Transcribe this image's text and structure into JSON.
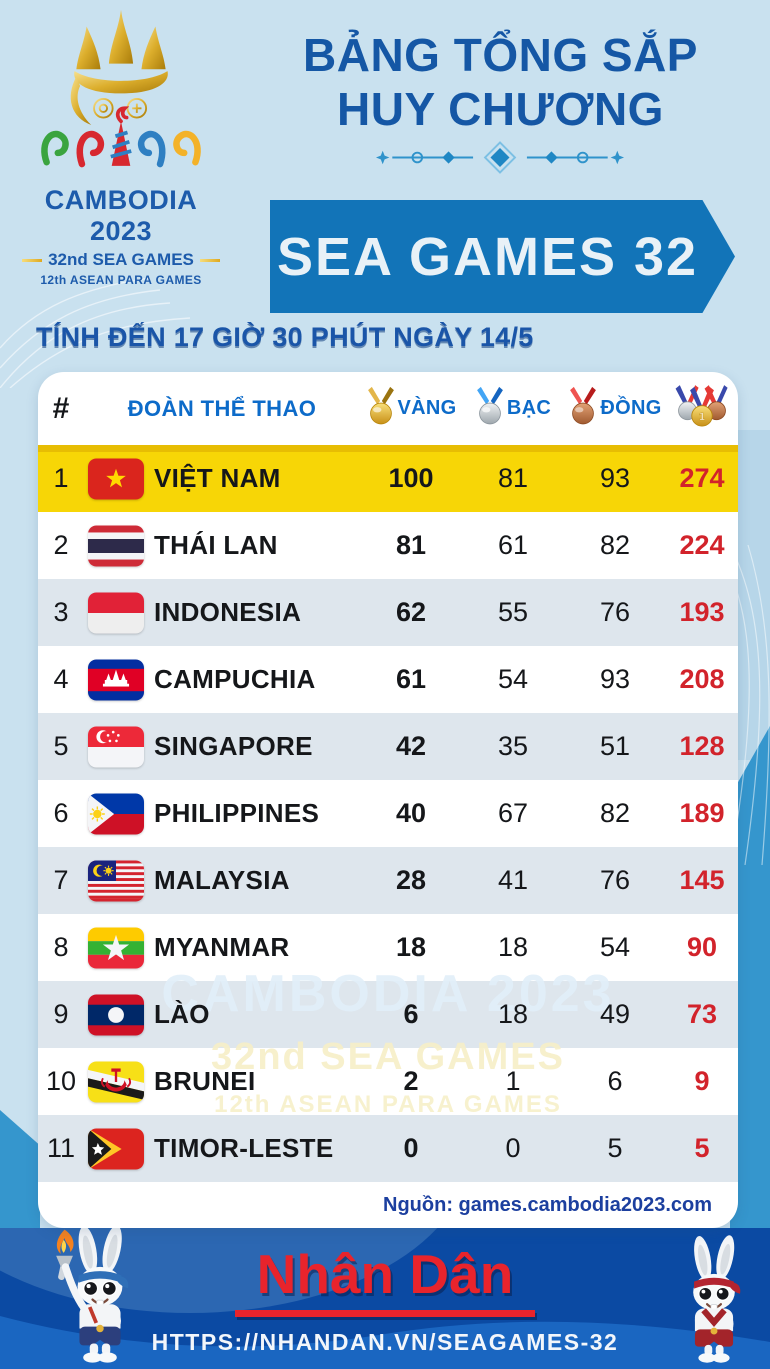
{
  "header": {
    "title_line1": "BẢNG TỔNG SẮP",
    "title_line2": "HUY CHƯƠNG",
    "banner": "SEA GAMES 32",
    "subtitle": "TÍNH ĐẾN 17 GIỜ 30 PHÚT NGÀY 14/5"
  },
  "logo": {
    "country_year": "CAMBODIA 2023",
    "games": "32nd SEA GAMES",
    "para_games": "12th ASEAN PARA GAMES"
  },
  "table": {
    "col_rank": "#",
    "col_team": "ĐOÀN THỂ THAO",
    "col_gold": "VÀNG",
    "col_silver": "BẠC",
    "col_bronze": "ĐỒNG",
    "rows": [
      {
        "rank": "1",
        "country": "VIỆT NAM",
        "gold": "100",
        "silver": "81",
        "bronze": "93",
        "total": "274",
        "flag": "vn",
        "flag_icon": "flag-vietnam-icon",
        "highlight": true
      },
      {
        "rank": "2",
        "country": "THÁI LAN",
        "gold": "81",
        "silver": "61",
        "bronze": "82",
        "total": "224",
        "flag": "th",
        "flag_icon": "flag-thailand-icon"
      },
      {
        "rank": "3",
        "country": "INDONESIA",
        "gold": "62",
        "silver": "55",
        "bronze": "76",
        "total": "193",
        "flag": "id",
        "flag_icon": "flag-indonesia-icon"
      },
      {
        "rank": "4",
        "country": "CAMPUCHIA",
        "gold": "61",
        "silver": "54",
        "bronze": "93",
        "total": "208",
        "flag": "kh",
        "flag_icon": "flag-cambodia-icon"
      },
      {
        "rank": "5",
        "country": "SINGAPORE",
        "gold": "42",
        "silver": "35",
        "bronze": "51",
        "total": "128",
        "flag": "sg",
        "flag_icon": "flag-singapore-icon"
      },
      {
        "rank": "6",
        "country": "PHILIPPINES",
        "gold": "40",
        "silver": "67",
        "bronze": "82",
        "total": "189",
        "flag": "ph",
        "flag_icon": "flag-philippines-icon"
      },
      {
        "rank": "7",
        "country": "MALAYSIA",
        "gold": "28",
        "silver": "41",
        "bronze": "76",
        "total": "145",
        "flag": "my",
        "flag_icon": "flag-malaysia-icon"
      },
      {
        "rank": "8",
        "country": "MYANMAR",
        "gold": "18",
        "silver": "18",
        "bronze": "54",
        "total": "90",
        "flag": "mm",
        "flag_icon": "flag-myanmar-icon"
      },
      {
        "rank": "9",
        "country": "LÀO",
        "gold": "6",
        "silver": "18",
        "bronze": "49",
        "total": "73",
        "flag": "la",
        "flag_icon": "flag-laos-icon"
      },
      {
        "rank": "10",
        "country": "BRUNEI",
        "gold": "2",
        "silver": "1",
        "bronze": "6",
        "total": "9",
        "flag": "bn",
        "flag_icon": "flag-brunei-icon"
      },
      {
        "rank": "11",
        "country": "TIMOR-LESTE",
        "gold": "0",
        "silver": "0",
        "bronze": "5",
        "total": "5",
        "flag": "tl",
        "flag_icon": "flag-timor-leste-icon"
      }
    ],
    "source": "Nguồn: games.cambodia2023.com"
  },
  "watermark": {
    "line1": "CAMBODIA 2023",
    "line2": "32nd SEA GAMES",
    "line3": "12th ASEAN PARA GAMES"
  },
  "footer": {
    "brand": "Nhân Dân",
    "url": "HTTPS://NHANDAN.VN/SEAGAMES-32"
  },
  "colors": {
    "background": "#c9e1ef",
    "title_blue": "#1557a5",
    "banner_blue": "#1274b8",
    "header_label_blue": "#0d6bc9",
    "highlight_yellow": "#f7d606",
    "alt_row": "#dee6ed",
    "total_red": "#d2232b",
    "footer_blue": "#0b4aa3",
    "footer_wave_blue": "#1a66c1",
    "brand_red": "#e8242c"
  },
  "chart_data": {
    "type": "table",
    "title": "BẢNG TỔNG SẮP HUY CHƯƠNG — SEA GAMES 32",
    "as_of": "TÍNH ĐẾN 17 GIỜ 30 PHÚT NGÀY 14/5",
    "columns": [
      "#",
      "ĐOÀN THỂ THAO",
      "VÀNG",
      "BẠC",
      "ĐỒNG",
      "TỔNG"
    ],
    "rows": [
      [
        1,
        "VIỆT NAM",
        100,
        81,
        93,
        274
      ],
      [
        2,
        "THÁI LAN",
        81,
        61,
        82,
        224
      ],
      [
        3,
        "INDONESIA",
        62,
        55,
        76,
        193
      ],
      [
        4,
        "CAMPUCHIA",
        61,
        54,
        93,
        208
      ],
      [
        5,
        "SINGAPORE",
        42,
        35,
        51,
        128
      ],
      [
        6,
        "PHILIPPINES",
        40,
        67,
        82,
        189
      ],
      [
        7,
        "MALAYSIA",
        28,
        41,
        76,
        145
      ],
      [
        8,
        "MYANMAR",
        18,
        18,
        54,
        90
      ],
      [
        9,
        "LÀO",
        6,
        18,
        49,
        73
      ],
      [
        10,
        "BRUNEI",
        2,
        1,
        6,
        9
      ],
      [
        11,
        "TIMOR-LESTE",
        0,
        0,
        5,
        5
      ]
    ],
    "source": "games.cambodia2023.com",
    "notes": "Row 1 (VIỆT NAM) highlighted yellow; sorted by gold medals"
  }
}
